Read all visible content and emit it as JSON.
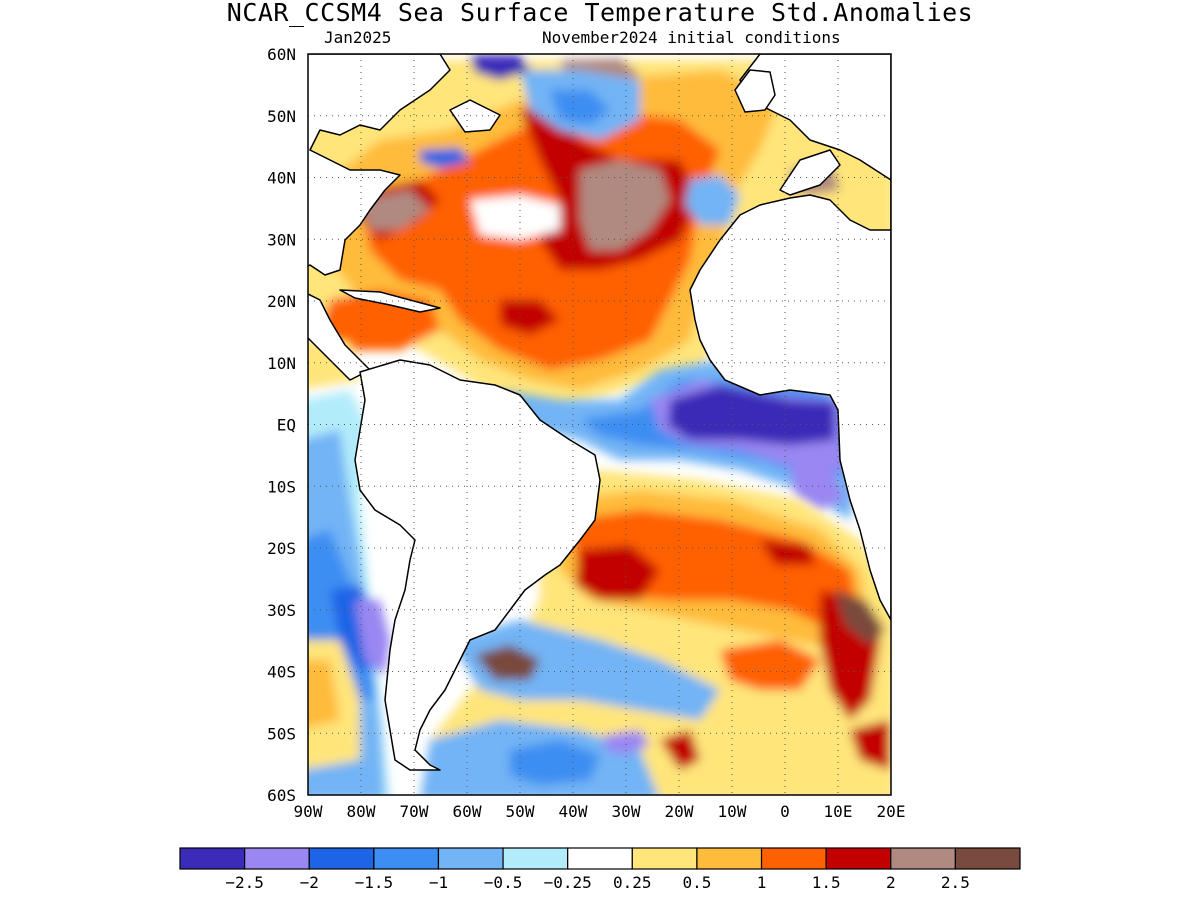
{
  "header": {
    "title": "NCAR_CCSM4 Sea Surface Temperature Std.Anomalies",
    "valid_month": "Jan2025",
    "initial_conditions": "November2024 initial conditions"
  },
  "map": {
    "lon_range": [
      -90,
      20
    ],
    "lat_range": [
      -60,
      60
    ],
    "grid": "dotted",
    "lat_ticks": [
      {
        "value": 60,
        "label": "60N"
      },
      {
        "value": 50,
        "label": "50N"
      },
      {
        "value": 40,
        "label": "40N"
      },
      {
        "value": 30,
        "label": "30N"
      },
      {
        "value": 20,
        "label": "20N"
      },
      {
        "value": 10,
        "label": "10N"
      },
      {
        "value": 0,
        "label": "EQ"
      },
      {
        "value": -10,
        "label": "10S"
      },
      {
        "value": -20,
        "label": "20S"
      },
      {
        "value": -30,
        "label": "30S"
      },
      {
        "value": -40,
        "label": "40S"
      },
      {
        "value": -50,
        "label": "50S"
      },
      {
        "value": -60,
        "label": "60S"
      }
    ],
    "lon_ticks": [
      {
        "value": -90,
        "label": "90W"
      },
      {
        "value": -80,
        "label": "80W"
      },
      {
        "value": -70,
        "label": "70W"
      },
      {
        "value": -60,
        "label": "60W"
      },
      {
        "value": -50,
        "label": "50W"
      },
      {
        "value": -40,
        "label": "40W"
      },
      {
        "value": -30,
        "label": "30W"
      },
      {
        "value": -20,
        "label": "20W"
      },
      {
        "value": -10,
        "label": "10W"
      },
      {
        "value": 0,
        "label": "0"
      },
      {
        "value": 10,
        "label": "10E"
      },
      {
        "value": 20,
        "label": "20E"
      }
    ]
  },
  "colorbar": {
    "colors": [
      "#3a2cb8",
      "#9a87f2",
      "#1e64e6",
      "#3c8ef2",
      "#72b4f5",
      "#b2ecfa",
      "#ffffff",
      "#ffe57a",
      "#ffbb3a",
      "#ff6000",
      "#c20000",
      "#b08a80",
      "#7a4a3e"
    ],
    "labels": [
      "−2.5",
      "−2",
      "−1.5",
      "−1",
      "−0.5",
      "−0.25",
      "0.25",
      "0.5",
      "1",
      "1.5",
      "2",
      "2.5"
    ]
  },
  "land_color": "#ffffff",
  "coast_color": "#000000"
}
